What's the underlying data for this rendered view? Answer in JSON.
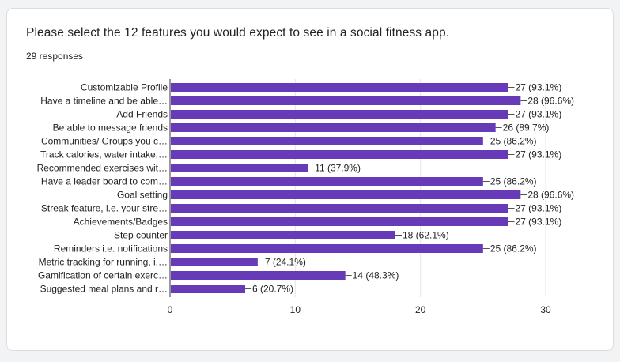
{
  "question": "Please select the 12 features you would expect to see in a social fitness app.",
  "responses": "29 responses",
  "colors": {
    "bar": "#673ab7",
    "grid": "#e6e6e6",
    "axis": "#333333",
    "card_bg": "#ffffff",
    "page_bg": "#f1f3f4"
  },
  "chart_data": {
    "type": "bar",
    "orientation": "horizontal",
    "categories": [
      "Customizable Profile",
      "Have a timeline and be able…",
      "Add Friends",
      "Be able to message friends",
      "Communities/ Groups you c…",
      "Track calories, water intake,…",
      "Recommended exercises wit…",
      "Have a leader board to com…",
      "Goal setting",
      "Streak feature, i.e. your stre…",
      "Achievements/Badges",
      "Step counter",
      "Reminders i.e. notifications",
      "Metric tracking for running, i.…",
      "Gamification of certain exerc…",
      "Suggested meal plans and r…"
    ],
    "values": [
      27,
      28,
      27,
      26,
      25,
      27,
      11,
      25,
      28,
      27,
      27,
      18,
      25,
      7,
      14,
      6
    ],
    "value_labels": [
      "27 (93.1%)",
      "28 (96.6%)",
      "27 (93.1%)",
      "26 (89.7%)",
      "25 (86.2%)",
      "27 (93.1%)",
      "11 (37.9%)",
      "25 (86.2%)",
      "28 (96.6%)",
      "27 (93.1%)",
      "27 (93.1%)",
      "18 (62.1%)",
      "25 (86.2%)",
      "7 (24.1%)",
      "14 (48.3%)",
      "6 (20.7%)"
    ],
    "xlim": [
      0,
      30
    ],
    "xticks": [
      "0",
      "10",
      "20",
      "30"
    ],
    "grid": true,
    "legend": "none"
  }
}
